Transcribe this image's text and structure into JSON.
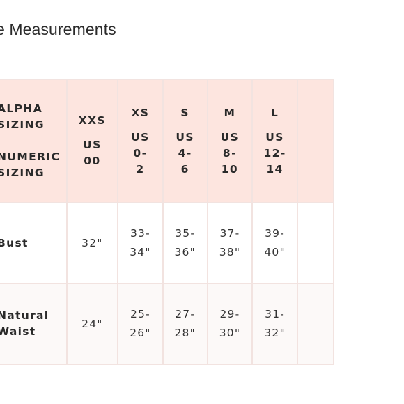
{
  "title": "e Measurements",
  "table": {
    "header": {
      "alpha_line1": "ALPHA",
      "alpha_line2": "SIZING",
      "numeric_line1": "NUMERIC",
      "numeric_line2": "SIZING",
      "sizes": [
        {
          "alpha": "XXS",
          "us": "US",
          "num1": "00",
          "num2": ""
        },
        {
          "alpha": "XS",
          "us": "US",
          "num1": "0-",
          "num2": "2"
        },
        {
          "alpha": "S",
          "us": "US",
          "num1": "4-",
          "num2": "6"
        },
        {
          "alpha": "M",
          "us": "US",
          "num1": "8-",
          "num2": "10"
        },
        {
          "alpha": "L",
          "us": "US",
          "num1": "12-",
          "num2": "14"
        }
      ]
    },
    "rows": [
      {
        "label_line1": "Bust",
        "label_line2": "",
        "values": [
          {
            "a": "32\"",
            "b": ""
          },
          {
            "a": "33-",
            "b": "34\""
          },
          {
            "a": "35-",
            "b": "36\""
          },
          {
            "a": "37-",
            "b": "38\""
          },
          {
            "a": "39-",
            "b": "40\""
          }
        ]
      },
      {
        "label_line1": "Natural",
        "label_line2": "Waist",
        "values": [
          {
            "a": "24\"",
            "b": ""
          },
          {
            "a": "25-",
            "b": "26\""
          },
          {
            "a": "27-",
            "b": "28\""
          },
          {
            "a": "29-",
            "b": "30\""
          },
          {
            "a": "31-",
            "b": "32\""
          }
        ]
      }
    ]
  }
}
